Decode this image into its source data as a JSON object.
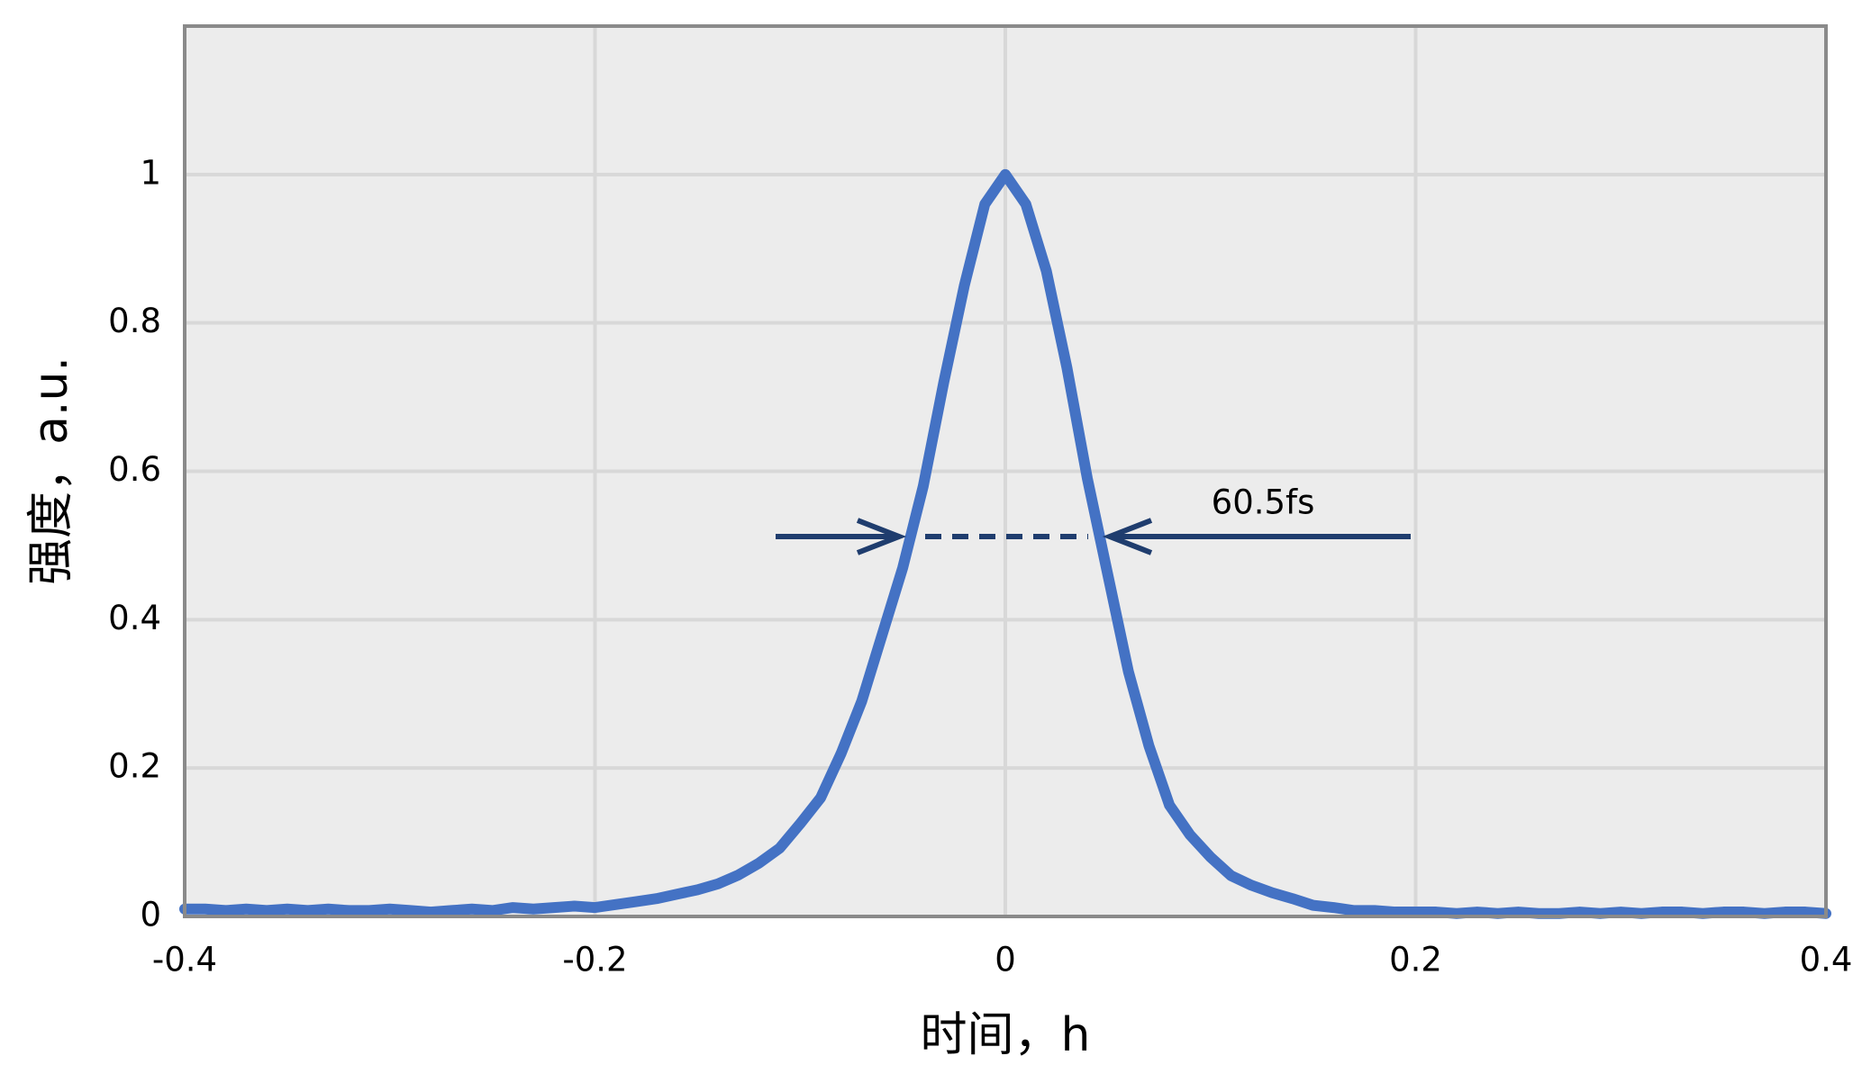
{
  "chart_data": {
    "type": "line",
    "x_label": "时间，h",
    "y_label": "强度，a.u.",
    "annotation": "60.5fs",
    "xlim": [
      -0.4,
      0.4
    ],
    "xticks": [
      -0.4,
      -0.2,
      0,
      0.2,
      0.4
    ],
    "ylim": [
      0,
      1.2
    ],
    "yticks": [
      0,
      0.2,
      0.4,
      0.6,
      0.8,
      1
    ],
    "grid": true,
    "x": [
      -0.4,
      -0.39,
      -0.38,
      -0.37,
      -0.36,
      -0.35,
      -0.34,
      -0.33,
      -0.32,
      -0.31,
      -0.3,
      -0.29,
      -0.28,
      -0.27,
      -0.26,
      -0.25,
      -0.24,
      -0.23,
      -0.22,
      -0.21,
      -0.2,
      -0.19,
      -0.18,
      -0.17,
      -0.16,
      -0.15,
      -0.14,
      -0.13,
      -0.12,
      -0.11,
      -0.1,
      -0.09,
      -0.08,
      -0.07,
      -0.06,
      -0.05,
      -0.04,
      -0.03,
      -0.02,
      -0.01,
      0,
      0.01,
      0.02,
      0.03,
      0.04,
      0.05,
      0.06,
      0.07,
      0.08,
      0.09,
      0.1,
      0.11,
      0.12,
      0.13,
      0.14,
      0.15,
      0.16,
      0.17,
      0.18,
      0.19,
      0.2,
      0.21,
      0.22,
      0.23,
      0.24,
      0.25,
      0.26,
      0.27,
      0.28,
      0.29,
      0.3,
      0.31,
      0.32,
      0.33,
      0.34,
      0.35,
      0.36,
      0.37,
      0.38,
      0.39,
      0.4
    ],
    "series": [
      {
        "color": "#4472c4",
        "values": [
          0.01,
          0.01,
          0.008,
          0.01,
          0.008,
          0.01,
          0.008,
          0.01,
          0.008,
          0.008,
          0.01,
          0.008,
          0.006,
          0.008,
          0.01,
          0.008,
          0.012,
          0.01,
          0.012,
          0.014,
          0.012,
          0.016,
          0.02,
          0.024,
          0.03,
          0.036,
          0.044,
          0.056,
          0.072,
          0.092,
          0.125,
          0.16,
          0.22,
          0.29,
          0.38,
          0.47,
          0.58,
          0.72,
          0.85,
          0.96,
          1.0,
          0.96,
          0.87,
          0.74,
          0.59,
          0.46,
          0.33,
          0.23,
          0.15,
          0.11,
          0.08,
          0.055,
          0.042,
          0.032,
          0.024,
          0.015,
          0.012,
          0.008,
          0.008,
          0.006,
          0.006,
          0.006,
          0.004,
          0.006,
          0.004,
          0.006,
          0.004,
          0.004,
          0.006,
          0.004,
          0.006,
          0.004,
          0.006,
          0.006,
          0.004,
          0.006,
          0.006,
          0.004,
          0.006,
          0.006,
          0.004
        ]
      }
    ]
  }
}
